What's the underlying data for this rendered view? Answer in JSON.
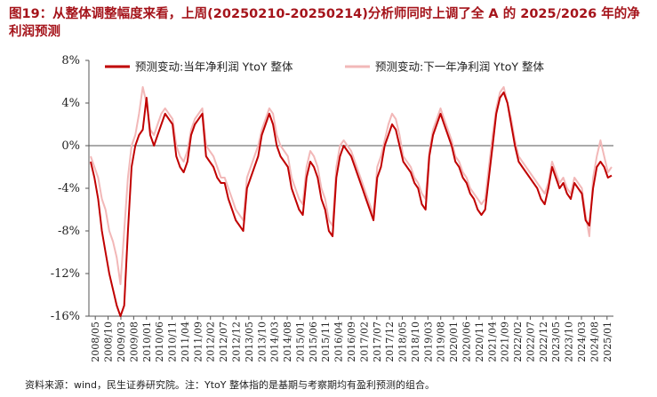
{
  "title": "图19：从整体调整幅度来看，上周(20250210-20250214)分析师同时上调了全 A 的 2025/2026 年的净利润预测",
  "note": "资料来源：wind，民生证券研究院。注：YtoY 整体指的是基期与考察期均有盈利预测的组合。",
  "colors": {
    "series1": "#c00000",
    "series2": "#f2b8b8",
    "title": "#a5141b"
  },
  "chart_data": {
    "type": "line",
    "ylim": [
      -16,
      8
    ],
    "yticks": [
      "8%",
      "4%",
      "0%",
      "-4%",
      "-8%",
      "-12%",
      "-16%"
    ],
    "ytick_values": [
      8,
      4,
      0,
      -4,
      -8,
      -12,
      -16
    ],
    "xticks": [
      "2008/05",
      "2008/10",
      "2009/03",
      "2009/08",
      "2010/01",
      "2010/06",
      "2010/11",
      "2011/04",
      "2011/09",
      "2012/02",
      "2012/07",
      "2012/12",
      "2013/05",
      "2013/10",
      "2014/03",
      "2014/08",
      "2015/01",
      "2015/06",
      "2015/11",
      "2016/04",
      "2016/09",
      "2017/02",
      "2017/07",
      "2017/12",
      "2018/05",
      "2018/10",
      "2019/03",
      "2019/08",
      "2020/01",
      "2020/06",
      "2020/11",
      "2021/04",
      "2021/09",
      "2022/02",
      "2022/07",
      "2022/12",
      "2023/05",
      "2023/10",
      "2024/03",
      "2024/08",
      "2025/01"
    ],
    "legend": [
      "预测变动:当年净利润 YtoY 整体",
      "预测变动:下一年净利润 YtoY 整体"
    ],
    "series": [
      {
        "name": "预测变动:当年净利润 YtoY 整体",
        "values": [
          -1.5,
          -3,
          -5,
          -8,
          -10,
          -12,
          -13.5,
          -15,
          -16,
          -15,
          -8,
          -2,
          0,
          1,
          1.5,
          4.5,
          1,
          0,
          1,
          2,
          3,
          2.5,
          2,
          -1,
          -2,
          -2.5,
          -1.5,
          1,
          2,
          2.5,
          3,
          -1,
          -1.5,
          -2,
          -3,
          -3.5,
          -3.5,
          -5,
          -6,
          -7,
          -7.5,
          -8,
          -4,
          -3,
          -2,
          -1,
          1,
          2,
          3,
          2,
          0,
          -1,
          -1.5,
          -2,
          -4,
          -5,
          -6,
          -6.5,
          -3,
          -1.5,
          -2,
          -3,
          -5,
          -6,
          -8,
          -8.5,
          -3,
          -1,
          0,
          -0.5,
          -1,
          -2,
          -3,
          -4,
          -5,
          -6,
          -7,
          -3,
          -2,
          0,
          1,
          2,
          1.5,
          0,
          -1.5,
          -2,
          -2.5,
          -3.5,
          -4,
          -5.5,
          -6,
          -1,
          1,
          2,
          3,
          2,
          1,
          0,
          -1.5,
          -2,
          -3,
          -3.5,
          -4.5,
          -5,
          -6,
          -6.5,
          -6,
          -3,
          0,
          3,
          4.5,
          5,
          4,
          2,
          0,
          -1.5,
          -2,
          -2.5,
          -3,
          -3.5,
          -4,
          -5,
          -5.5,
          -4,
          -2,
          -3,
          -4,
          -3.5,
          -4.5,
          -5,
          -3.5,
          -4,
          -4.5,
          -7,
          -7.5,
          -4,
          -2,
          -1.5,
          -2,
          -3,
          -2.8
        ]
      },
      {
        "name": "预测变动:下一年净利润 YtoY 整体",
        "values": [
          -1,
          -2,
          -3,
          -5,
          -6,
          -8,
          -9,
          -10.5,
          -13,
          -8,
          -3,
          0,
          1,
          3,
          5.5,
          4,
          1.5,
          1,
          2,
          3,
          3.5,
          3,
          2.5,
          0,
          -1,
          -1.5,
          -0.5,
          1.5,
          2.5,
          3,
          3.5,
          0,
          -0.5,
          -1,
          -2,
          -3,
          -3,
          -4,
          -5,
          -6,
          -6.5,
          -7,
          -3,
          -2,
          -1,
          0,
          1.5,
          2.5,
          3.5,
          3,
          1,
          0,
          -0.5,
          -1,
          -3,
          -4,
          -5,
          -5.5,
          -2,
          -0.5,
          -1,
          -2,
          -4,
          -5,
          -7,
          -7.5,
          -2,
          0,
          0.5,
          0,
          -0.5,
          -1.5,
          -2.5,
          -3.5,
          -4.5,
          -5.5,
          -6.5,
          -2,
          -1,
          0.5,
          2,
          3,
          2.5,
          1,
          -1,
          -1.5,
          -2,
          -3,
          -3.5,
          -4.5,
          -5,
          -0.5,
          1.5,
          2.5,
          3.5,
          2.5,
          1.5,
          0.5,
          -1,
          -1.5,
          -2.5,
          -3,
          -4,
          -4.5,
          -5,
          -5.5,
          -5,
          -2,
          1,
          3.5,
          5,
          5.5,
          4,
          2.5,
          0.5,
          -1,
          -1.5,
          -2,
          -2.5,
          -3,
          -3.5,
          -4,
          -4.5,
          -3.5,
          -1.5,
          -2.5,
          -3.5,
          -3,
          -4,
          -4.5,
          -3,
          -3.5,
          -4,
          -6.5,
          -8.5,
          -3,
          -1,
          0.5,
          -1,
          -2.5,
          -2
        ]
      }
    ]
  }
}
